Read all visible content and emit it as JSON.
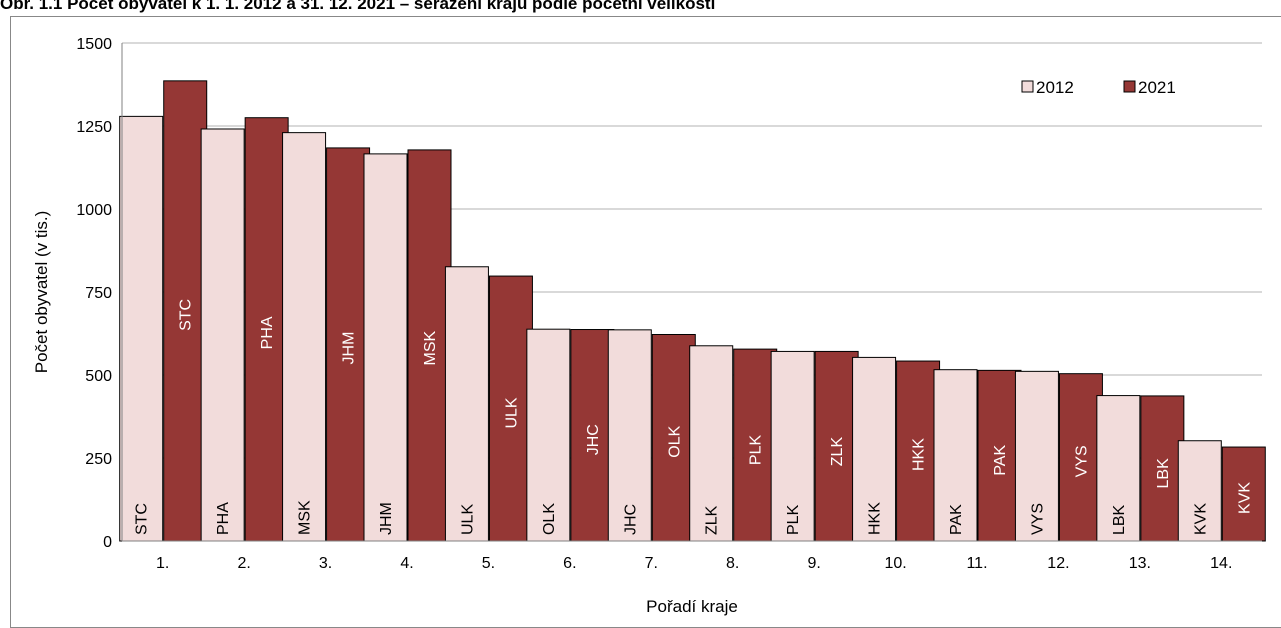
{
  "title": "Obr. 1.1 Počet obyvatel k 1. 1. 2012 a 31. 12. 2021 – seřazení krajů podle početní velikosti",
  "chart_data": {
    "type": "bar",
    "title": "Obr. 1.1 Počet obyvatel k 1. 1. 2012 a 31. 12. 2021 – seřazení krajů podle početní velikosti",
    "xlabel": "Pořadí kraje",
    "ylabel": "Počet obyvatel (v tis.)",
    "ylim": [
      0,
      1500
    ],
    "yticks": [
      0,
      250,
      500,
      750,
      1000,
      1250,
      1500
    ],
    "grid": true,
    "legend_position": "top-right",
    "categories": [
      "1.",
      "2.",
      "3.",
      "4.",
      "5.",
      "6.",
      "7.",
      "8.",
      "9.",
      "10.",
      "11.",
      "12.",
      "13.",
      "14."
    ],
    "series": [
      {
        "name": "2012",
        "color": "#f2dcdb",
        "values": [
          1279,
          1241,
          1230,
          1166,
          826,
          638,
          636,
          588,
          571,
          553,
          516,
          511,
          438,
          302
        ],
        "labels": [
          "STC",
          "PHA",
          "MSK",
          "JHM",
          "ULK",
          "OLK",
          "JHC",
          "ZLK",
          "PLK",
          "HKK",
          "PAK",
          "VYS",
          "LBK",
          "KVK"
        ]
      },
      {
        "name": "2021",
        "color": "#953735",
        "values": [
          1386,
          1275,
          1184,
          1178,
          798,
          637,
          622,
          578,
          571,
          542,
          514,
          504,
          437,
          283
        ],
        "labels": [
          "STC",
          "PHA",
          "JHM",
          "MSK",
          "ULK",
          "JHC",
          "OLK",
          "PLK",
          "ZLK",
          "HKK",
          "PAK",
          "VYS",
          "LBK",
          "KVK"
        ]
      }
    ]
  }
}
